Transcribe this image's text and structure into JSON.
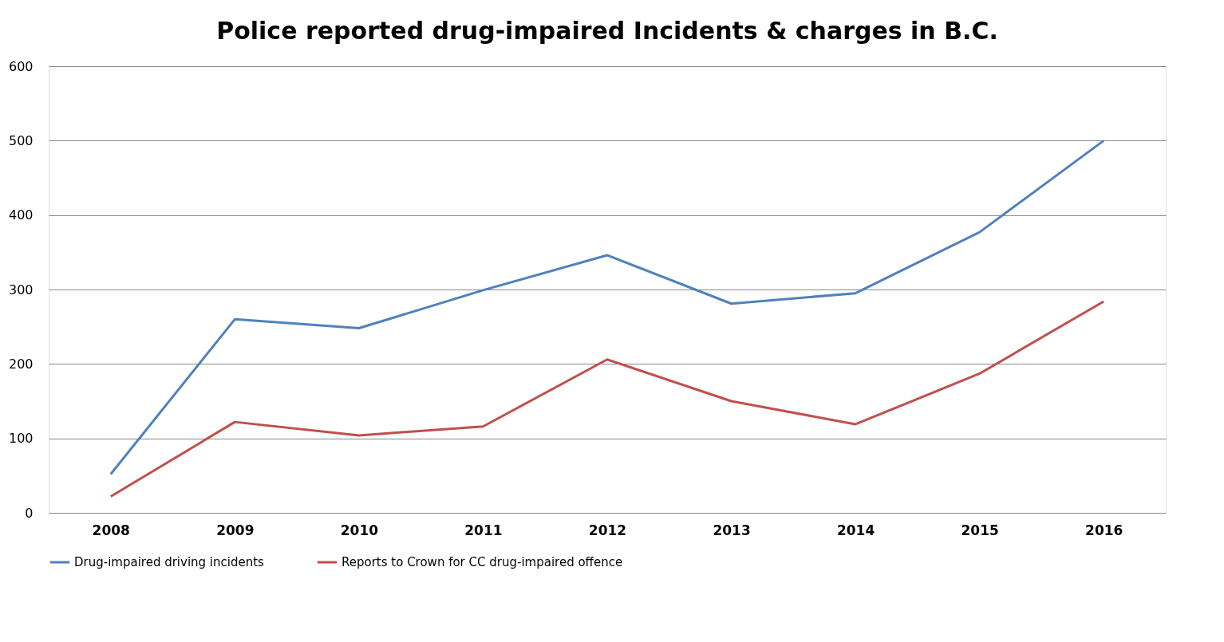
{
  "chart_data": {
    "type": "line",
    "title": "Police reported drug-impaired Incidents & charges in B.C.",
    "categories": [
      "2008",
      "2009",
      "2010",
      "2011",
      "2012",
      "2013",
      "2014",
      "2015",
      "2016"
    ],
    "series": [
      {
        "name": "Drug-impaired driving incidents",
        "color": "#4f81bd",
        "values": [
          52,
          260,
          248,
          299,
          346,
          281,
          295,
          377,
          500
        ]
      },
      {
        "name": "Reports to Crown for CC drug-impaired offence",
        "color": "#c0504d",
        "values": [
          22,
          122,
          104,
          116,
          206,
          150,
          119,
          187,
          284
        ]
      }
    ],
    "ylim": [
      0,
      600
    ],
    "yticks": [
      0,
      100,
      200,
      300,
      400,
      500,
      600
    ],
    "grid": "y",
    "legend": "bottom",
    "marker": "none",
    "line_style": "solid"
  }
}
